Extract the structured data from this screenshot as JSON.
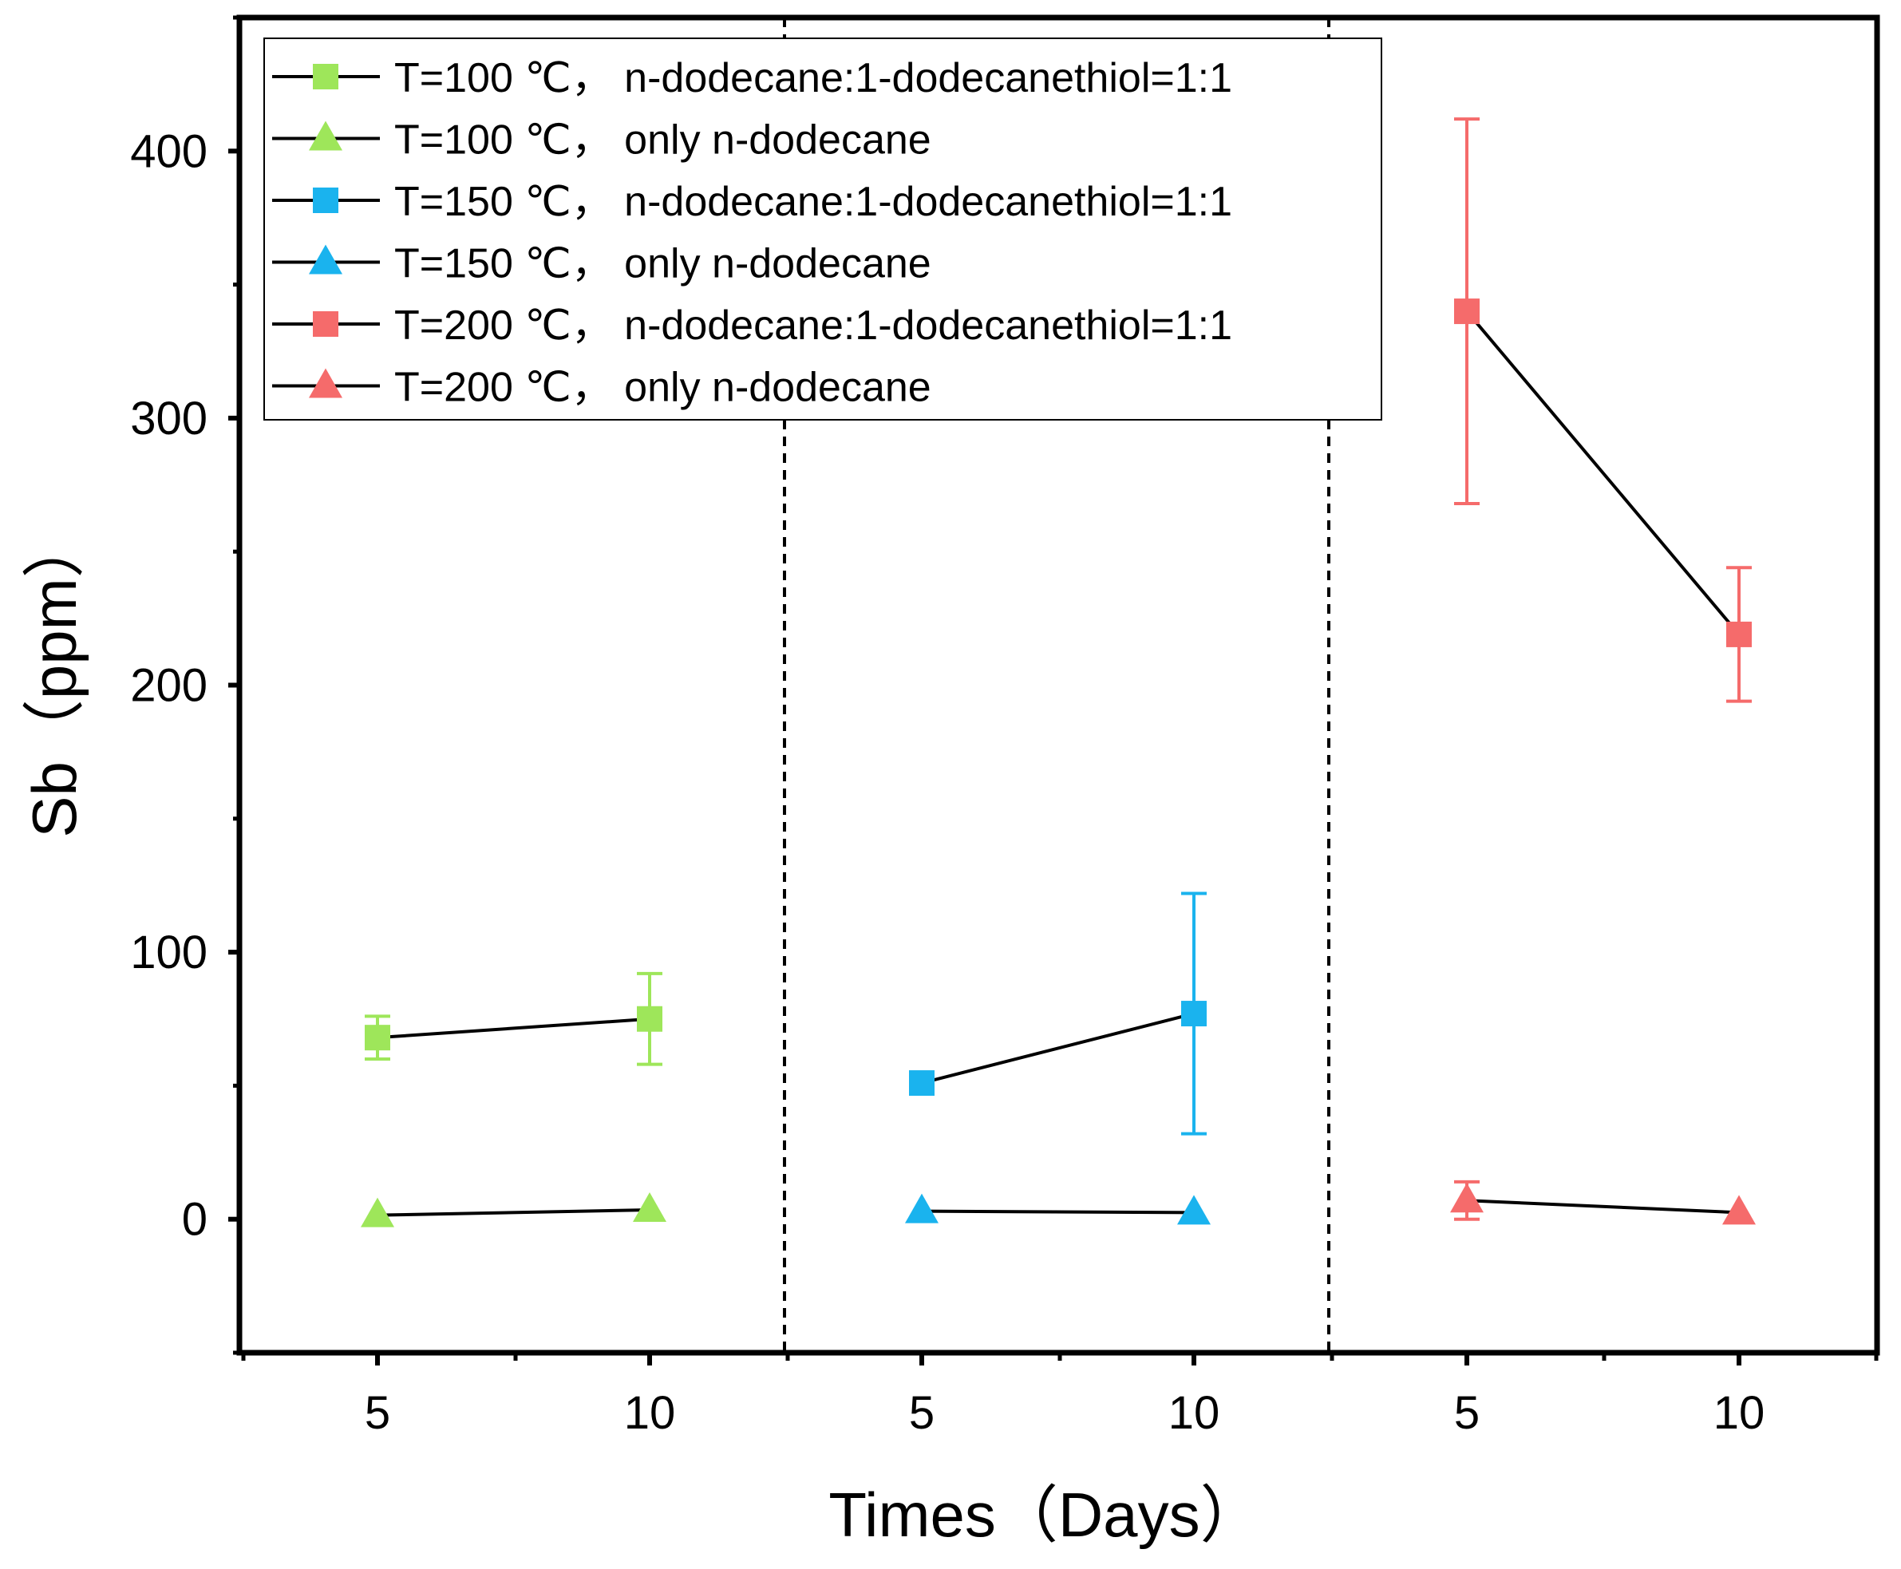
{
  "chart_data": {
    "type": "line",
    "title": "",
    "xlabel": "Times（Days）",
    "ylabel": "Sb（ppm）",
    "ylim": [
      -50,
      450
    ],
    "y_ticks": [
      0,
      100,
      200,
      300,
      400
    ],
    "y_tick_labels": [
      "0",
      "100",
      "200",
      "300",
      "400"
    ],
    "x_tick_labels": [
      "5",
      "10",
      "5",
      "10",
      "5",
      "10"
    ],
    "legend_position": "top-left",
    "colors": {
      "T100": "#9ee65a",
      "T150": "#1ab3ee",
      "T200": "#f56b6b",
      "line": "#000000",
      "axis": "#000000",
      "divider": "#000000"
    },
    "series": [
      {
        "name": "T=100 ℃， n-dodecane:1-dodecanethiol=1:1",
        "color_key": "T100",
        "marker": "square",
        "group": 0,
        "days": [
          5,
          10
        ],
        "values": [
          68,
          75
        ],
        "errors": [
          8,
          17
        ]
      },
      {
        "name": "T=100 ℃， only n-dodecane",
        "color_key": "T100",
        "marker": "triangle",
        "group": 0,
        "days": [
          5,
          10
        ],
        "values": [
          1.5,
          3.5
        ],
        "errors": [
          0,
          0
        ]
      },
      {
        "name": "T=150 ℃， n-dodecane:1-dodecanethiol=1:1",
        "color_key": "T150",
        "marker": "square",
        "group": 1,
        "days": [
          5,
          10
        ],
        "values": [
          51,
          77
        ],
        "errors": [
          0,
          45
        ]
      },
      {
        "name": "T=150 ℃， only n-dodecane",
        "color_key": "T150",
        "marker": "triangle",
        "group": 1,
        "days": [
          5,
          10
        ],
        "values": [
          3,
          2.5
        ],
        "errors": [
          0,
          0
        ]
      },
      {
        "name": "T=200 ℃， n-dodecane:1-dodecanethiol=1:1",
        "color_key": "T200",
        "marker": "square",
        "group": 2,
        "days": [
          5,
          10
        ],
        "values": [
          340,
          219
        ],
        "errors": [
          72,
          25
        ]
      },
      {
        "name": "T=200 ℃， only n-dodecane",
        "color_key": "T200",
        "marker": "triangle",
        "group": 2,
        "days": [
          5,
          10
        ],
        "values": [
          7,
          2.5
        ],
        "errors": [
          7,
          0
        ]
      }
    ]
  }
}
